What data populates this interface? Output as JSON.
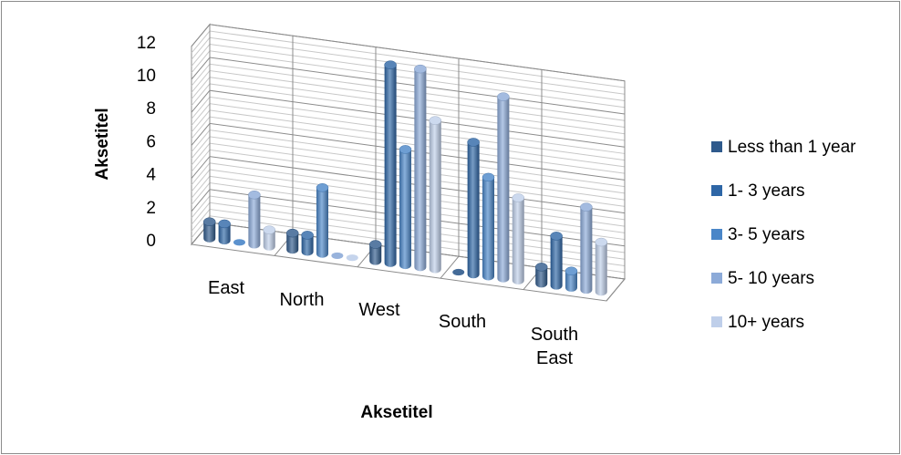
{
  "chart_data": {
    "type": "bar",
    "variant": "3d-column",
    "categories": [
      "East",
      "North",
      "West",
      "South",
      "South East"
    ],
    "series": [
      {
        "name": "Less than 1 year",
        "values": [
          1,
          1,
          1,
          0,
          1
        ],
        "color": "#2F5A8C"
      },
      {
        "name": "1- 3 years",
        "values": [
          1,
          1,
          12,
          8,
          3
        ],
        "color": "#2E66A6"
      },
      {
        "name": "3- 5 years",
        "values": [
          0,
          4,
          7,
          6,
          1
        ],
        "color": "#4A86C8"
      },
      {
        "name": "5- 10 years",
        "values": [
          3,
          0,
          12,
          11,
          5
        ],
        "color": "#8CAAD8"
      },
      {
        "name": "10+ years",
        "values": [
          1,
          0,
          9,
          5,
          3
        ],
        "color": "#BFCFEA"
      }
    ],
    "xlabel": "Aksetitel",
    "ylabel": "Aksetitel",
    "ylim": [
      0,
      12
    ],
    "yticks": [
      "0",
      "2",
      "4",
      "6",
      "8",
      "10",
      "12"
    ],
    "grid": true,
    "legend_position": "right"
  }
}
